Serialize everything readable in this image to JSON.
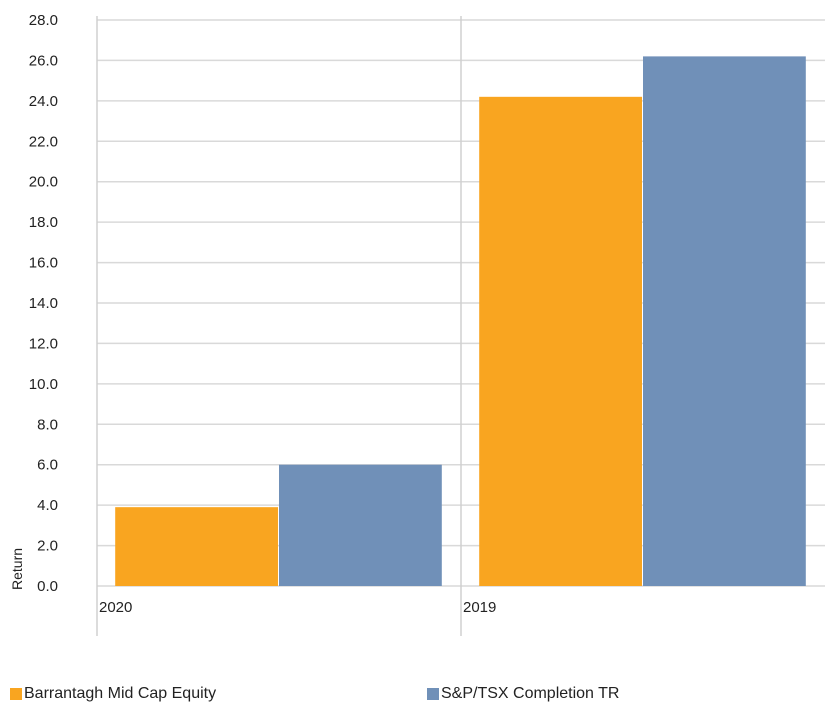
{
  "chart_data": {
    "type": "bar",
    "categories": [
      "2020",
      "2019"
    ],
    "series": [
      {
        "name": "Barrantagh Mid Cap Equity",
        "values": [
          3.9,
          24.2
        ],
        "color": "#F9A520"
      },
      {
        "name": "S&P/TSX Completion TR",
        "values": [
          6.0,
          26.2
        ],
        "color": "#7090B8"
      }
    ],
    "ylabel": "Return",
    "xlabel": "",
    "ylim": [
      0,
      28
    ],
    "ytick_step": 2,
    "ytick_labels": [
      "0.0",
      "2.0",
      "4.0",
      "6.0",
      "8.0",
      "10.0",
      "12.0",
      "14.0",
      "16.0",
      "18.0",
      "20.0",
      "22.0",
      "24.0",
      "26.0",
      "28.0"
    ],
    "grid": true,
    "legend_position": "bottom"
  }
}
